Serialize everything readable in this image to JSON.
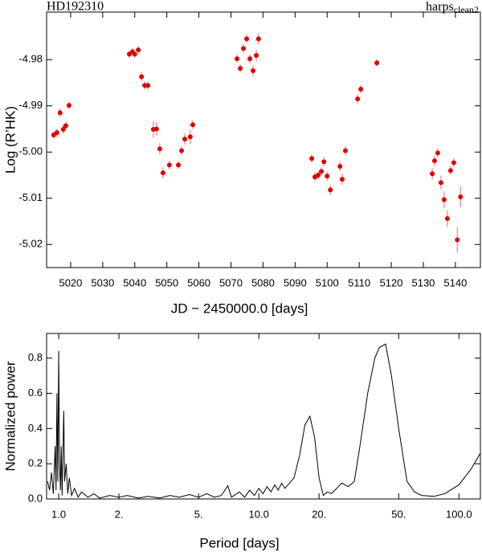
{
  "chart_data": [
    {
      "type": "scatter",
      "title": "HD192310",
      "label_right": "harps",
      "label_right_sub": "clean2",
      "xlabel": "JD − 2450000.0 [days]",
      "ylabel": "Log (R’HK)",
      "xlim": [
        5012.5,
        5147.8
      ],
      "ylim": [
        -5.025,
        -4.9697
      ],
      "xticks": [
        5020,
        5030,
        5040,
        5050,
        5060,
        5070,
        5080,
        5090,
        5100,
        5110,
        5120,
        5130,
        5140
      ],
      "yticks": [
        -4.98,
        -4.99,
        {
          "value": -5.0,
          "label": "-5.00"
        },
        -5.01,
        -5.02
      ],
      "series": [
        {
          "color": "#e00000",
          "error_color": "#f08080",
          "x": [
            5014.7,
            5015.7,
            5016.7,
            5017.7,
            5018.5,
            5019.5,
            5038.3,
            5039.3,
            5040.0,
            5041.1,
            5042.1,
            5043.1,
            5044.1,
            5045.8,
            5046.8,
            5047.8,
            5048.8,
            5050.8,
            5053.6,
            5054.6,
            5055.6,
            5057.3,
            5058.1,
            5071.9,
            5072.9,
            5073.9,
            5074.9,
            5075.9,
            5076.9,
            5077.9,
            5078.6,
            5095.2,
            5096.2,
            5097.2,
            5098.2,
            5099.0,
            5100.0,
            5101.0,
            5104.0,
            5104.7,
            5105.7,
            5109.5,
            5110.5,
            5115.5,
            5132.8,
            5133.5,
            5134.5,
            5135.5,
            5136.5,
            5137.5,
            5138.5,
            5139.5,
            5140.6,
            5141.6
          ],
          "values": [
            -4.9963,
            -4.9958,
            -4.9915,
            -4.9951,
            -4.9943,
            -4.9899,
            -4.9788,
            -4.9783,
            -4.9788,
            -4.9779,
            -4.9837,
            -4.9856,
            -4.9856,
            -4.9951,
            -4.995,
            -4.9993,
            -5.0045,
            -5.0028,
            -5.0028,
            -4.9997,
            -4.9972,
            -4.9967,
            -4.9941,
            -4.9798,
            -4.9819,
            -4.9776,
            -4.9755,
            -4.9798,
            -4.9824,
            -4.9791,
            -4.9755,
            -5.0014,
            -5.0054,
            -5.005,
            -5.0042,
            -5.0021,
            -5.0052,
            -5.0082,
            -5.0031,
            -5.0059,
            -4.9997,
            -4.9885,
            -4.9864,
            -4.9807,
            -5.0047,
            -5.0019,
            -5.0002,
            -5.0066,
            -5.0103,
            -5.0144,
            -5.004,
            -5.0023,
            -5.019,
            -5.0097
          ],
          "errors": [
            0.0008,
            0.0008,
            0.0009,
            0.001,
            0.0009,
            0.0008,
            0.0008,
            0.0008,
            0.0008,
            0.0008,
            0.001,
            0.0009,
            0.0009,
            0.0018,
            0.0015,
            0.0012,
            0.0012,
            0.0009,
            0.0009,
            0.001,
            0.0012,
            0.0015,
            0.001,
            0.0009,
            0.0009,
            0.0009,
            0.0009,
            0.001,
            0.0012,
            0.0012,
            0.0012,
            0.0009,
            0.001,
            0.0009,
            0.0009,
            0.001,
            0.001,
            0.001,
            0.001,
            0.0012,
            0.001,
            0.001,
            0.0009,
            0.0008,
            0.0012,
            0.0012,
            0.001,
            0.0015,
            0.0018,
            0.0018,
            0.001,
            0.001,
            0.0028,
            0.0022
          ]
        }
      ]
    },
    {
      "type": "line",
      "xlabel": "Period [days]",
      "ylabel": "Normalized power",
      "log_x": true,
      "color": "#000000",
      "xlim": [
        0.87,
        128
      ],
      "ylim": [
        0,
        0.94
      ],
      "xticks": [
        {
          "value": 1,
          "label": "1.0"
        },
        {
          "value": 2,
          "label": "2."
        },
        {
          "value": 5,
          "label": "5."
        },
        {
          "value": 10,
          "label": "10.0"
        },
        {
          "value": 20,
          "label": "20."
        },
        {
          "value": 50,
          "label": "50."
        },
        {
          "value": 100,
          "label": "100.0"
        }
      ],
      "yticks": [
        {
          "value": 0,
          "label": "0.0"
        },
        0.2,
        0.4,
        0.6,
        0.8
      ],
      "x": [
        0.88,
        0.9,
        0.92,
        0.94,
        0.96,
        0.97,
        0.98,
        0.99,
        1.0,
        1.01,
        1.02,
        1.03,
        1.04,
        1.06,
        1.07,
        1.09,
        1.11,
        1.13,
        1.16,
        1.2,
        1.25,
        1.3,
        1.4,
        1.5,
        1.6,
        1.8,
        2.0,
        2.2,
        2.5,
        2.8,
        3.2,
        3.6,
        4.0,
        4.5,
        5.0,
        5.5,
        6.0,
        6.5,
        7.0,
        7.3,
        8.0,
        8.5,
        9.0,
        9.5,
        10.0,
        10.5,
        11.0,
        11.5,
        12.0,
        12.5,
        13.0,
        13.5,
        14.0,
        15.0,
        16.0,
        17.0,
        18.0,
        19.0,
        20.0,
        21.0,
        22.0,
        23.0,
        24.0,
        26.0,
        28.0,
        30.0,
        32.0,
        35.0,
        38.0,
        40.0,
        43.0,
        46.0,
        50.0,
        55.0,
        60.0,
        65.0,
        75.0,
        85.0,
        100.0,
        115.0,
        128.0
      ],
      "values": [
        0.1,
        0.05,
        0.15,
        0.03,
        0.3,
        0.05,
        0.6,
        0.1,
        0.84,
        0.2,
        0.05,
        0.3,
        0.02,
        0.5,
        0.1,
        0.2,
        0.03,
        0.12,
        0.02,
        0.06,
        0.01,
        0.04,
        0.01,
        0.03,
        0.005,
        0.02,
        0.01,
        0.02,
        0.005,
        0.015,
        0.005,
        0.02,
        0.01,
        0.025,
        0.01,
        0.03,
        0.01,
        0.02,
        0.075,
        0.01,
        0.04,
        0.01,
        0.05,
        0.02,
        0.06,
        0.03,
        0.07,
        0.04,
        0.08,
        0.05,
        0.09,
        0.06,
        0.08,
        0.12,
        0.25,
        0.42,
        0.47,
        0.35,
        0.12,
        0.02,
        0.04,
        0.03,
        0.05,
        0.09,
        0.07,
        0.1,
        0.3,
        0.6,
        0.8,
        0.86,
        0.88,
        0.7,
        0.4,
        0.1,
        0.04,
        0.02,
        0.015,
        0.03,
        0.08,
        0.17,
        0.26
      ]
    }
  ]
}
